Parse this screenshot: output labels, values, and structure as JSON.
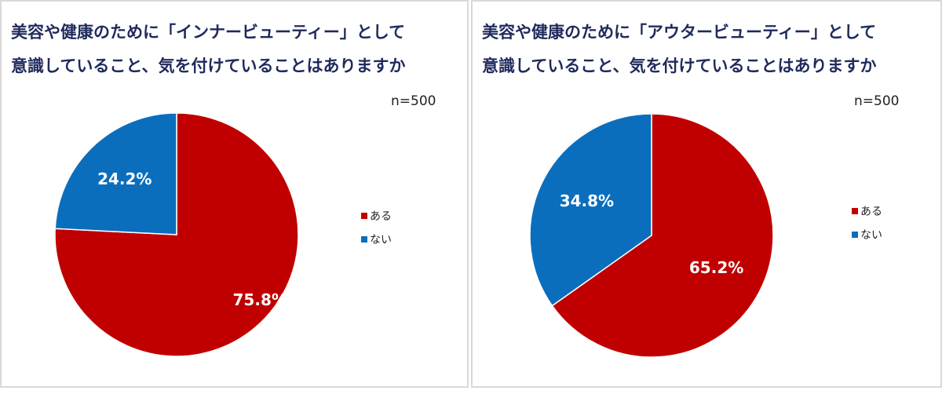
{
  "colors": {
    "yes": "#c00000",
    "no": "#0a6ebd",
    "title": "#1f2a5c"
  },
  "chart_data": [
    {
      "type": "pie",
      "title_lines": [
        "美容や健康のために「インナービューティー」として",
        "意識していること、気を付けていることはありますか"
      ],
      "n_label": "n=500",
      "categories": [
        "ある",
        "ない"
      ],
      "values": [
        75.8,
        24.2
      ],
      "data_labels": [
        "75.8%",
        "24.2%"
      ],
      "legend": [
        "ある",
        "ない"
      ],
      "legend_position": "right"
    },
    {
      "type": "pie",
      "title_lines": [
        "美容や健康のために「アウタービューティー」として",
        "意識していること、気を付けていることはありますか"
      ],
      "n_label": "n=500",
      "categories": [
        "ある",
        "ない"
      ],
      "values": [
        65.2,
        34.8
      ],
      "data_labels": [
        "65.2%",
        "34.8%"
      ],
      "legend": [
        "ある",
        "ない"
      ],
      "legend_position": "right"
    }
  ]
}
